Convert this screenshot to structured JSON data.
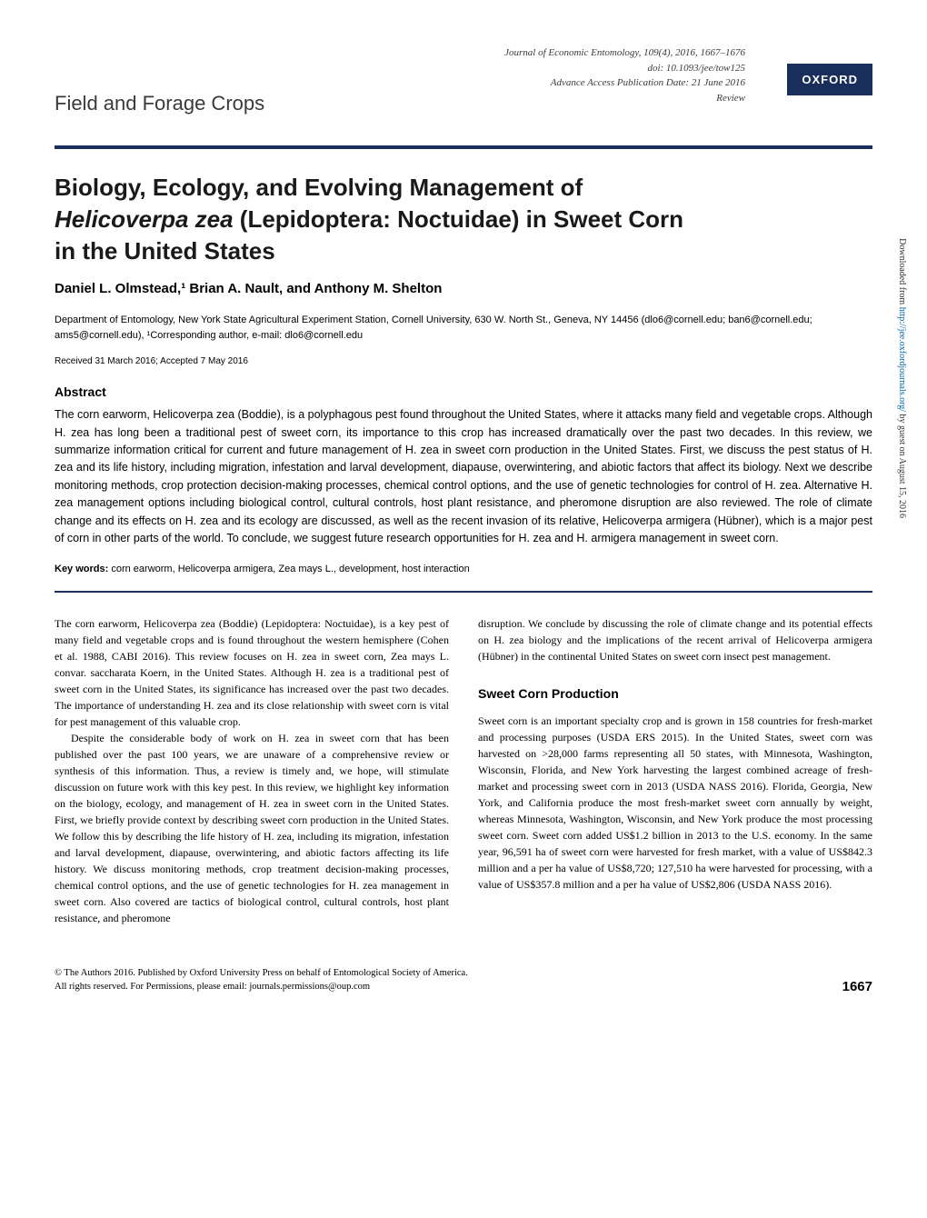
{
  "header": {
    "journal_line": "Journal of Economic Entomology, 109(4), 2016, 1667–1676",
    "doi": "doi: 10.1093/jee/tow125",
    "advance": "Advance Access Publication Date: 21 June 2016",
    "article_type": "Review",
    "section_label": "Field and Forage Crops",
    "publisher_badge": "OXFORD"
  },
  "title": {
    "line1": "Biology, Ecology, and Evolving Management of",
    "line2_species": "Helicoverpa zea",
    "line2_rest": " (Lepidoptera: Noctuidae) in Sweet Corn",
    "line3": "in the United States"
  },
  "authors": "Daniel L. Olmstead,¹ Brian A. Nault, and Anthony M. Shelton",
  "affiliation": "Department of Entomology, New York State Agricultural Experiment Station, Cornell University, 630 W. North St., Geneva, NY 14456 (dlo6@cornell.edu; ban6@cornell.edu; ams5@cornell.edu), ¹Corresponding author, e-mail: dlo6@cornell.edu",
  "dates": "Received 31 March 2016; Accepted 7 May 2016",
  "abstract": {
    "heading": "Abstract",
    "text": "The corn earworm, Helicoverpa zea (Boddie), is a polyphagous pest found throughout the United States, where it attacks many field and vegetable crops. Although H. zea has long been a traditional pest of sweet corn, its importance to this crop has increased dramatically over the past two decades. In this review, we summarize information critical for current and future management of H. zea in sweet corn production in the United States. First, we discuss the pest status of H. zea and its life history, including migration, infestation and larval development, diapause, overwintering, and abiotic factors that affect its biology. Next we describe monitoring methods, crop protection decision-making processes, chemical control options, and the use of genetic technologies for control of H. zea. Alternative H. zea management options including biological control, cultural controls, host plant resistance, and pheromone disruption are also reviewed. The role of climate change and its effects on H. zea and its ecology are discussed, as well as the recent invasion of its relative, Helicoverpa armigera (Hübner), which is a major pest of corn in other parts of the world. To conclude, we suggest future research opportunities for H. zea and H. armigera management in sweet corn."
  },
  "keywords": {
    "label": "Key words:",
    "text": " corn earworm, Helicoverpa armigera, Zea mays L., development, host interaction"
  },
  "body": {
    "col1_p1": "The corn earworm, Helicoverpa zea (Boddie) (Lepidoptera: Noctuidae), is a key pest of many field and vegetable crops and is found throughout the western hemisphere (Cohen et al. 1988, CABI 2016). This review focuses on H. zea in sweet corn, Zea mays L. convar. saccharata Koern, in the United States. Although H. zea is a traditional pest of sweet corn in the United States, its significance has increased over the past two decades. The importance of understanding H. zea and its close relationship with sweet corn is vital for pest management of this valuable crop.",
    "col1_p2": "Despite the considerable body of work on H. zea in sweet corn that has been published over the past 100 years, we are unaware of a comprehensive review or synthesis of this information. Thus, a review is timely and, we hope, will stimulate discussion on future work with this key pest. In this review, we highlight key information on the biology, ecology, and management of H. zea in sweet corn in the United States. First, we briefly provide context by describing sweet corn production in the United States. We follow this by describing the life history of H. zea, including its migration, infestation and larval development, diapause, overwintering, and abiotic factors affecting its life history. We discuss monitoring methods, crop treatment decision-making processes, chemical control options, and the use of genetic technologies for H. zea management in sweet corn. Also covered are tactics of biological control, cultural controls, host plant resistance, and pheromone",
    "col2_p1": "disruption. We conclude by discussing the role of climate change and its potential effects on H. zea biology and the implications of the recent arrival of Helicoverpa armigera (Hübner) in the continental United States on sweet corn insect pest management.",
    "section_heading": "Sweet Corn Production",
    "col2_p2": "Sweet corn is an important specialty crop and is grown in 158 countries for fresh-market and processing purposes (USDA ERS 2015). In the United States, sweet corn was harvested on >28,000 farms representing all 50 states, with Minnesota, Washington, Wisconsin, Florida, and New York harvesting the largest combined acreage of fresh-market and processing sweet corn in 2013 (USDA NASS 2016). Florida, Georgia, New York, and California produce the most fresh-market sweet corn annually by weight, whereas Minnesota, Washington, Wisconsin, and New York produce the most processing sweet corn. Sweet corn added US$1.2 billion in 2013 to the U.S. economy. In the same year, 96,591 ha of sweet corn were harvested for fresh market, with a value of US$842.3 million and a per ha value of US$8,720; 127,510 ha were harvested for processing, with a value of US$357.8 million and a per ha value of US$2,806 (USDA NASS 2016)."
  },
  "footer": {
    "copyright1": "© The Authors 2016. Published by Oxford University Press on behalf of Entomological Society of America.",
    "copyright2": "All rights reserved. For Permissions, please email: journals.permissions@oup.com",
    "page_number": "1667"
  },
  "side": {
    "text_pre": "Downloaded from ",
    "link": "http://jee.oxfordjournals.org/",
    "text_post": " by guest on August 15, 2016"
  },
  "colors": {
    "oxford_blue": "#1a2e5c",
    "link_blue": "#0066aa",
    "text_gray": "#3a3a3a",
    "background": "#ffffff"
  }
}
